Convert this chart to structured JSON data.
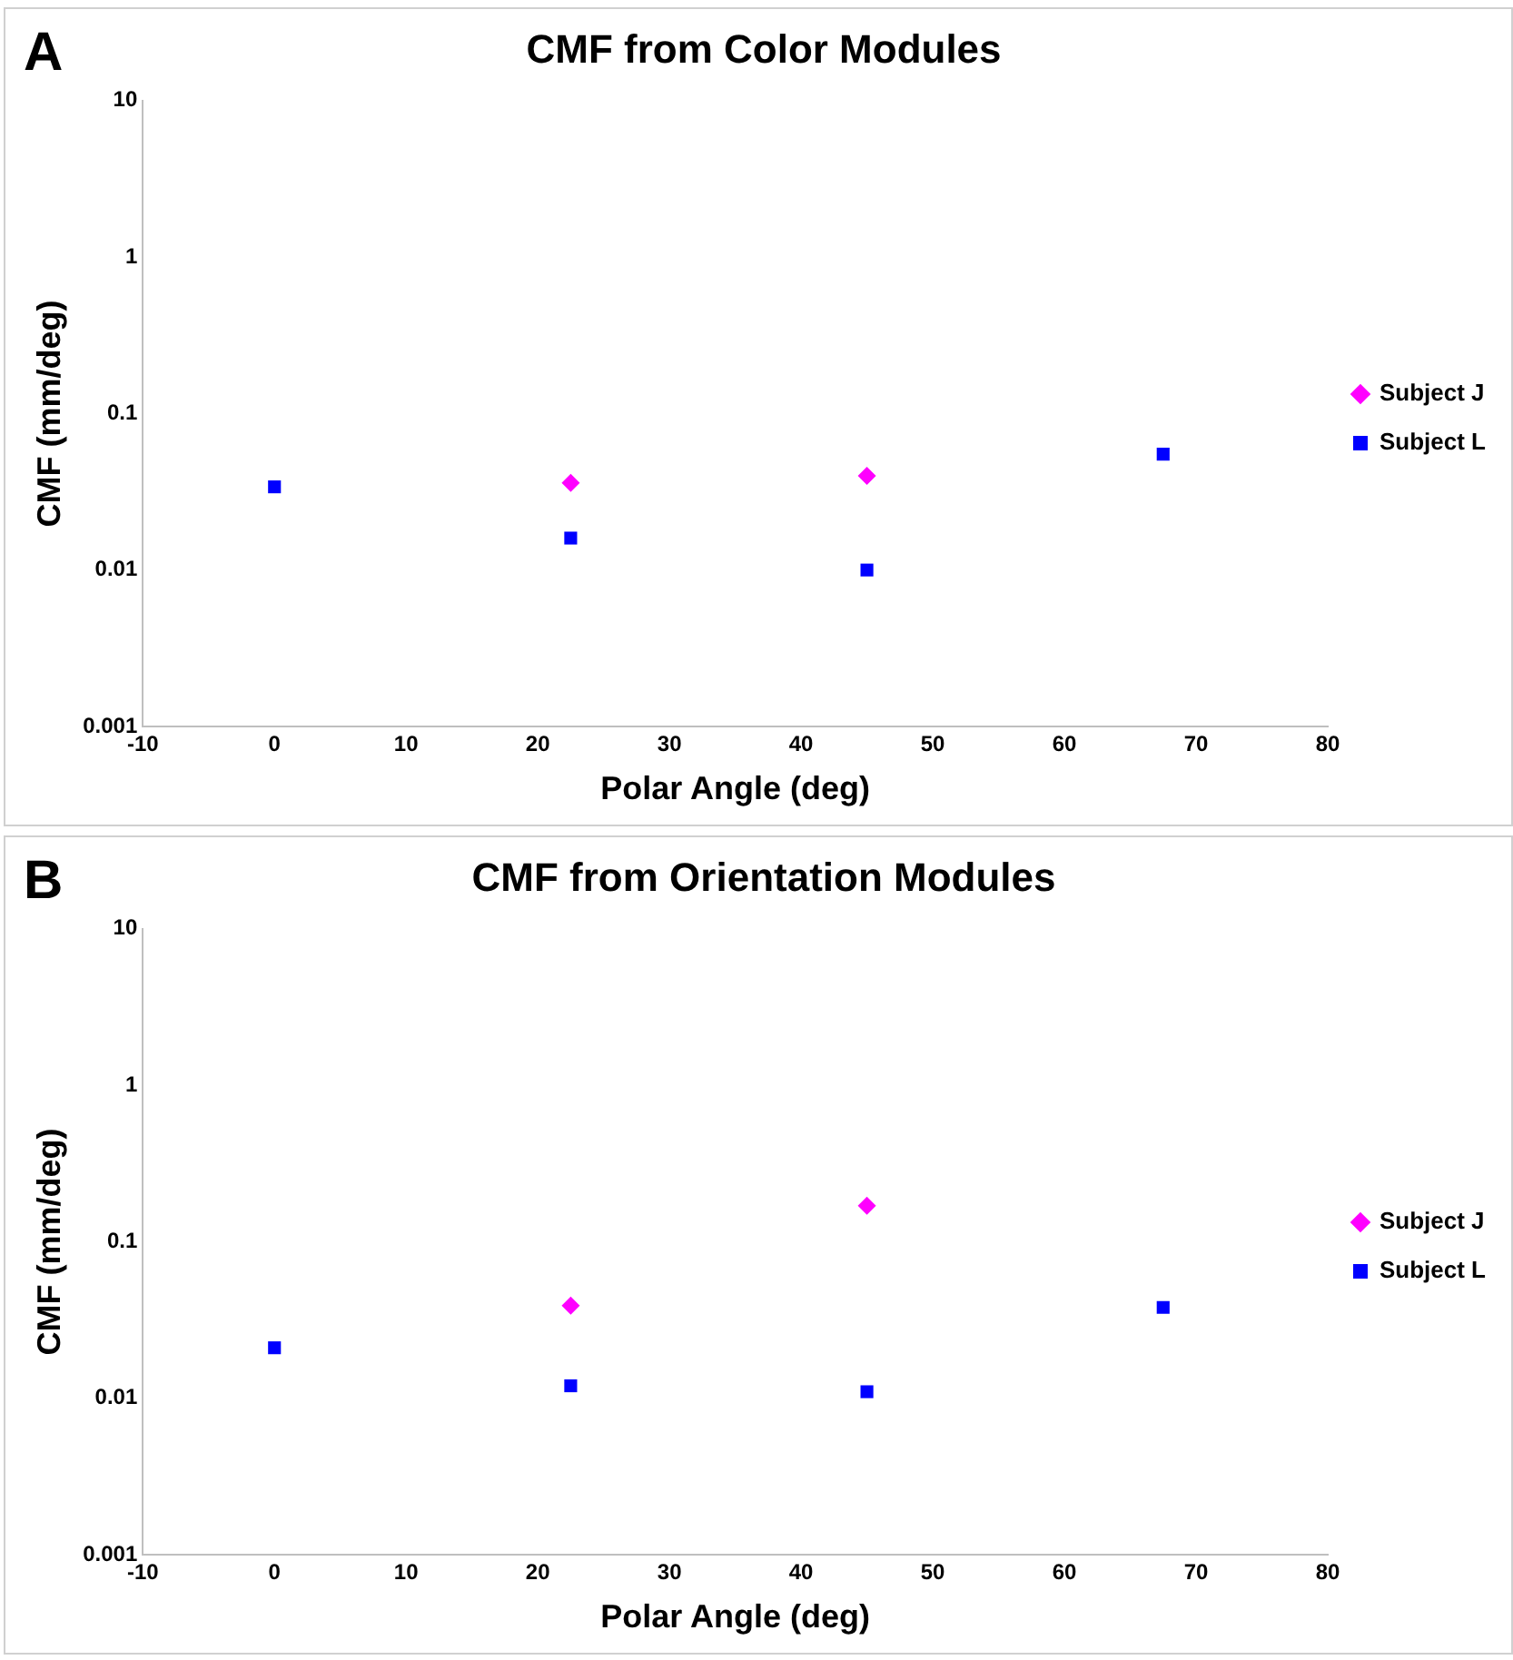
{
  "chart_data": [
    {
      "type": "scatter",
      "title": "CMF from Color Modules",
      "xlabel": "Polar Angle (deg)",
      "ylabel": "CMF (mm/deg)",
      "annotations": [
        "A"
      ],
      "log": "y",
      "xlim": [
        -10,
        80
      ],
      "xticks": [
        -10,
        0,
        10,
        20,
        30,
        40,
        50,
        60,
        70,
        80
      ],
      "ylim": [
        0.001,
        10
      ],
      "yticks": [
        0.001,
        0.01,
        0.1,
        1,
        10
      ],
      "grid": false,
      "legend": "right",
      "series": [
        {
          "name": "Subject J",
          "color": "#ff00ff",
          "marker": "diamond",
          "x": [
            22.5,
            45
          ],
          "values": [
            0.036,
            0.04
          ]
        },
        {
          "name": "Subject L",
          "color": "#0000ff",
          "marker": "square",
          "x": [
            0,
            22.5,
            45,
            67.5
          ],
          "values": [
            0.034,
            0.016,
            0.01,
            0.055
          ]
        }
      ]
    },
    {
      "type": "scatter",
      "title": "CMF from Orientation Modules",
      "xlabel": "Polar Angle (deg)",
      "ylabel": "CMF (mm/deg)",
      "annotations": [
        "B"
      ],
      "log": "y",
      "xlim": [
        -10,
        80
      ],
      "xticks": [
        -10,
        0,
        10,
        20,
        30,
        40,
        50,
        60,
        70,
        80
      ],
      "ylim": [
        0.001,
        10
      ],
      "yticks": [
        0.001,
        0.01,
        0.1,
        1,
        10
      ],
      "grid": false,
      "legend": "right",
      "series": [
        {
          "name": "Subject J",
          "color": "#ff00ff",
          "marker": "diamond",
          "x": [
            22.5,
            45
          ],
          "values": [
            0.039,
            0.17
          ]
        },
        {
          "name": "Subject L",
          "color": "#0000ff",
          "marker": "square",
          "x": [
            0,
            22.5,
            45,
            67.5
          ],
          "values": [
            0.021,
            0.012,
            0.011,
            0.038
          ]
        }
      ]
    }
  ]
}
